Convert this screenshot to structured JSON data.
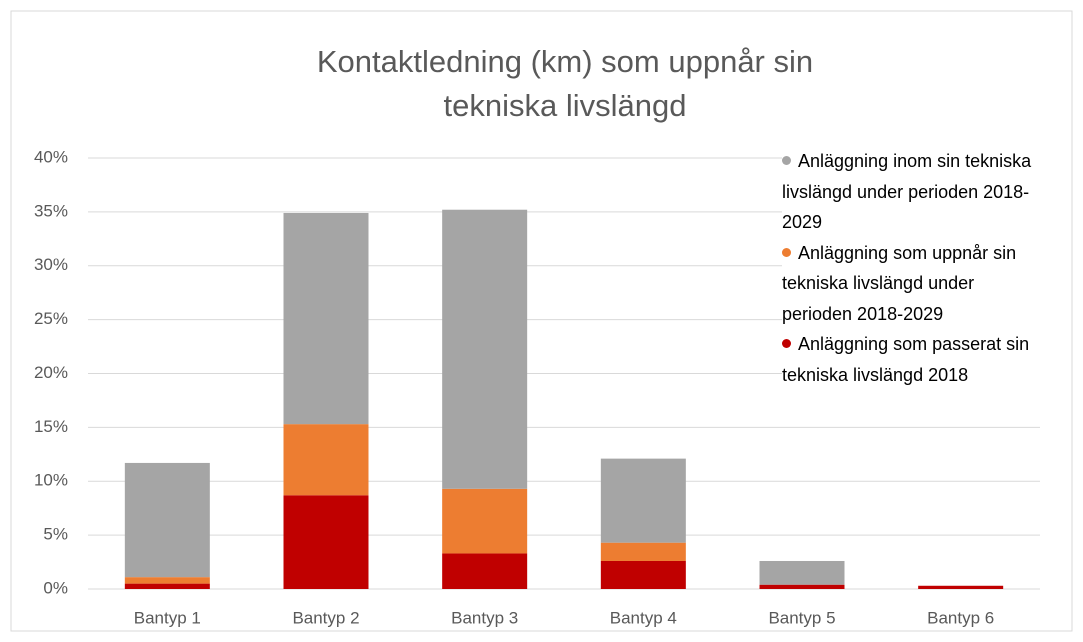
{
  "chart_data": {
    "type": "stacked_bar",
    "title": "Kontaktledning (km) som uppnår sin tekniska livslängd",
    "categories": [
      "Bantyp 1",
      "Bantyp 2",
      "Bantyp 3",
      "Bantyp 4",
      "Bantyp 5",
      "Bantyp 6"
    ],
    "series": [
      {
        "name": "Anläggning som passerat sin tekniska livslängd 2018",
        "color": "#c00000",
        "values": [
          0.5,
          8.7,
          3.3,
          2.6,
          0.4,
          0.3
        ]
      },
      {
        "name": "Anläggning som uppnår sin tekniska livslängd under perioden 2018-2029",
        "color": "#ed7d31",
        "values": [
          0.6,
          6.6,
          6.0,
          1.7,
          0,
          0
        ]
      },
      {
        "name": "Anläggning inom sin tekniska livslängd under perioden 2018-2029",
        "color": "#a5a5a5",
        "values": [
          10.6,
          19.6,
          25.9,
          7.8,
          2.2,
          0
        ]
      }
    ],
    "ylim": [
      0,
      40
    ],
    "yticks": [
      {
        "value": 0,
        "label": "0%"
      },
      {
        "value": 5,
        "label": "5%"
      },
      {
        "value": 10,
        "label": "10%"
      },
      {
        "value": 15,
        "label": "15%"
      },
      {
        "value": 20,
        "label": "20%"
      },
      {
        "value": 25,
        "label": "25%"
      },
      {
        "value": 30,
        "label": "30%"
      },
      {
        "value": 35,
        "label": "35%"
      },
      {
        "value": 40,
        "label": "40%"
      }
    ],
    "grid": true,
    "legend": "right"
  }
}
